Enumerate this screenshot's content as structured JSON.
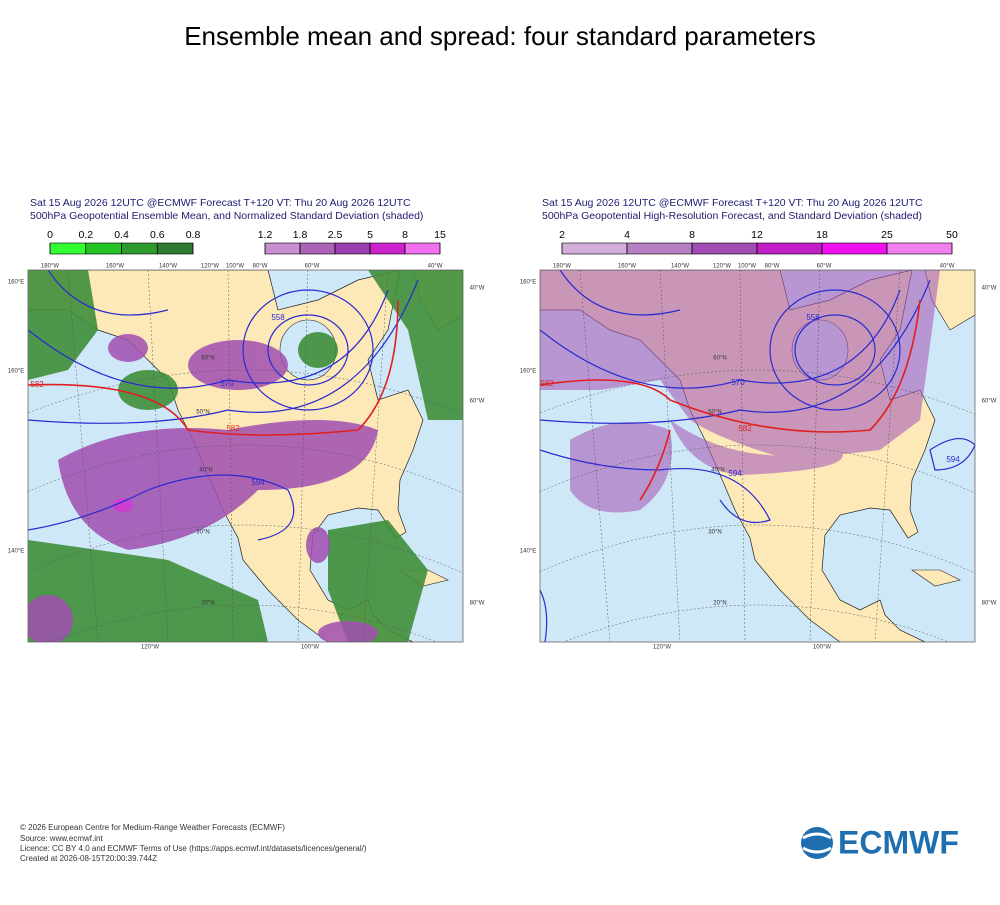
{
  "title": "Ensemble mean and spread: four standard parameters",
  "panels": [
    {
      "header": [
        "Sat 15 Aug 2026 12UTC @ECMWF Forecast T+120 VT: Thu 20 Aug 2026 12UTC",
        "500hPa Geopotential Ensemble Mean, and Normalized Standard Deviation (shaded)"
      ],
      "colorbars": [
        {
          "ticks": [
            0,
            0.2,
            0.4,
            0.6,
            0.8
          ],
          "colors": [
            "#33ff33",
            "#22c322",
            "#2e9a2e",
            "#2e7a30"
          ]
        },
        {
          "ticks": [
            1.2,
            1.8,
            2.5,
            5,
            8,
            15
          ],
          "colors": [
            "#c98fd0",
            "#ad62b9",
            "#9a3fae",
            "#cc22cc",
            "#f070f0"
          ]
        }
      ],
      "contour_labels": [
        "582",
        "570",
        "582",
        "594",
        "558"
      ],
      "top_labels": [
        "180°W",
        "160°W",
        "140°W",
        "120°W",
        "100°W",
        "80°W",
        "60°W",
        "40°W"
      ],
      "side_labels": [
        "160°E",
        "160°E",
        "140°E",
        "40°W",
        "60°W",
        "80°W"
      ],
      "lat_labels": [
        "60°N",
        "50°N",
        "40°N",
        "30°N",
        "20°N"
      ],
      "bottom_labels": [
        "120°W",
        "100°W"
      ]
    },
    {
      "header": [
        "Sat 15 Aug 2026 12UTC @ECMWF Forecast T+120 VT: Thu 20 Aug 2026 12UTC",
        "500hPa Geopotential High-Resolution Forecast, and Standard Deviation (shaded)"
      ],
      "colorbars": [
        {
          "ticks": [
            2,
            4,
            8,
            12,
            18,
            25,
            50
          ],
          "colors": [
            "#d4aedb",
            "#b77fc3",
            "#a24db3",
            "#c21fc6",
            "#ee11ee",
            "#f07ff0"
          ]
        }
      ],
      "contour_labels": [
        "582",
        "570",
        "582",
        "594",
        "558",
        "594"
      ],
      "top_labels": [
        "180°W",
        "160°W",
        "140°W",
        "120°W",
        "100°W",
        "80°W",
        "60°W",
        "40°W"
      ],
      "side_labels": [
        "160°E",
        "160°E",
        "140°E",
        "40°W",
        "60°W",
        "80°W"
      ],
      "lat_labels": [
        "60°N",
        "50°N",
        "40°N",
        "30°N",
        "20°N"
      ],
      "bottom_labels": [
        "120°W",
        "100°W"
      ]
    }
  ],
  "footer": [
    "© 2026 European Centre for Medium-Range Weather Forecasts (ECMWF)",
    "Source: www.ecmwf.int",
    "Licence: CC BY 4.0 and ECMWF Terms of Use (https://apps.ecmwf.int/datasets/licences/general/)",
    "Created at 2026-08-15T20:00:39.744Z"
  ],
  "logo": "ECMWF"
}
